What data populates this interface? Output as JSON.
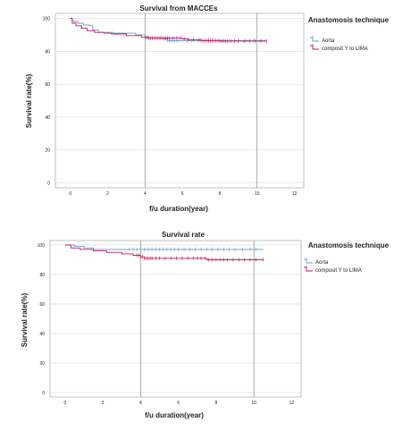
{
  "chart_data": [
    {
      "type": "line",
      "title": "Survival from MACCEs",
      "xlabel": "f/u duration(year)",
      "ylabel": "Survival rate(%)",
      "xlim": [
        -0.8,
        12.5
      ],
      "ylim": [
        -3,
        103
      ],
      "x_ticks": [
        "0",
        "2",
        "4",
        "6",
        "8",
        "10",
        "12"
      ],
      "x_tick_values": [
        0,
        2,
        4,
        6,
        8,
        10,
        12
      ],
      "y_ticks": [
        "0",
        "20",
        "40",
        "60",
        "80",
        "100"
      ],
      "y_tick_values": [
        0,
        20,
        40,
        60,
        80,
        100
      ],
      "vertical_reference_lines": [
        4,
        10
      ],
      "grid": true,
      "legend": {
        "title": "Anastomosis technique",
        "placement": "right"
      },
      "series": [
        {
          "name": "Aorta",
          "color": "#6a9ec4",
          "points": [
            [
              0,
              100
            ],
            [
              0.1,
              98.5
            ],
            [
              0.2,
              98
            ],
            [
              0.4,
              97
            ],
            [
              0.7,
              96
            ],
            [
              1.0,
              95.5
            ],
            [
              1.2,
              93
            ],
            [
              1.5,
              91.5
            ],
            [
              2.3,
              91
            ],
            [
              3.5,
              90
            ],
            [
              4.0,
              88
            ],
            [
              5.0,
              87.5
            ],
            [
              5.2,
              86.5
            ],
            [
              7.0,
              86.5
            ],
            [
              10.5,
              86.5
            ]
          ],
          "censor_marks": [
            4.0,
            4.1,
            4.2,
            4.3,
            4.4,
            4.5,
            4.6,
            4.7,
            4.8,
            4.9,
            5.0,
            5.1,
            5.2,
            5.3,
            5.4,
            5.5,
            5.6,
            5.7,
            5.8,
            6.0,
            6.2,
            6.5,
            6.8,
            7.0,
            7.2,
            7.4,
            7.6,
            7.8,
            8.0,
            8.2,
            8.5,
            8.8,
            9.0,
            9.4,
            9.8,
            10.2,
            10.5
          ]
        },
        {
          "name": "composit Y to LIMA",
          "color": "#c41a5c",
          "points": [
            [
              0,
              100
            ],
            [
              0.1,
              97
            ],
            [
              0.3,
              95.5
            ],
            [
              0.6,
              94
            ],
            [
              0.9,
              92.5
            ],
            [
              1.3,
              91.5
            ],
            [
              1.8,
              91
            ],
            [
              2.2,
              90.5
            ],
            [
              3.0,
              89.5
            ],
            [
              3.8,
              88.5
            ],
            [
              4.2,
              88
            ],
            [
              5.2,
              88
            ],
            [
              6.0,
              87.5
            ],
            [
              6.3,
              87
            ],
            [
              7.0,
              86.5
            ],
            [
              8.0,
              86.2
            ],
            [
              10.5,
              86
            ]
          ],
          "censor_marks": [
            4.0,
            4.1,
            4.2,
            4.3,
            4.4,
            4.5,
            4.6,
            4.7,
            4.8,
            4.9,
            5.0,
            5.1,
            5.2,
            5.3,
            5.5,
            5.7,
            5.9,
            6.1,
            6.3,
            6.6,
            6.9,
            7.0,
            7.1,
            7.2,
            7.3,
            7.4,
            7.5,
            7.6,
            7.7,
            7.8,
            7.9,
            8.0,
            8.1,
            8.2,
            8.3,
            8.4,
            8.6,
            8.8,
            9.0,
            9.3,
            9.6,
            9.9,
            10.2,
            10.5
          ]
        }
      ]
    },
    {
      "type": "line",
      "title": "Survival rate",
      "xlabel": "f/u duration(year)",
      "ylabel": "Survival rate(%)",
      "xlim": [
        -0.8,
        12.5
      ],
      "ylim": [
        -3,
        103
      ],
      "x_ticks": [
        "0",
        "2",
        "4",
        "6",
        "8",
        "10",
        "12"
      ],
      "x_tick_values": [
        0,
        2,
        4,
        6,
        8,
        10,
        12
      ],
      "y_ticks": [
        "0",
        "20",
        "40",
        "60",
        "80",
        "100"
      ],
      "y_tick_values": [
        0,
        20,
        40,
        60,
        80,
        100
      ],
      "vertical_reference_lines": [
        4,
        10
      ],
      "grid": true,
      "legend": {
        "title": "Anastomosis technique",
        "placement": "right"
      },
      "series": [
        {
          "name": "Aorta",
          "color": "#6a9ec4",
          "points": [
            [
              0,
              100
            ],
            [
              0.5,
              99
            ],
            [
              1.0,
              98
            ],
            [
              1.5,
              97
            ],
            [
              10.5,
              97
            ]
          ],
          "censor_marks": [
            3.4,
            3.6,
            3.8,
            4.0,
            4.2,
            4.4,
            4.6,
            4.8,
            5.0,
            5.2,
            5.4,
            5.6,
            5.8,
            6.0,
            6.3,
            6.6,
            6.9,
            7.2,
            7.5,
            7.8,
            8.1,
            8.4,
            8.7,
            9.0,
            9.4,
            9.8,
            10.1
          ]
        },
        {
          "name": "composit Y to LIMA",
          "color": "#c41a5c",
          "points": [
            [
              0,
              100
            ],
            [
              0.3,
              98
            ],
            [
              0.8,
              97
            ],
            [
              1.5,
              96
            ],
            [
              2.2,
              95
            ],
            [
              3.0,
              94
            ],
            [
              3.6,
              93
            ],
            [
              4.0,
              92
            ],
            [
              4.2,
              91
            ],
            [
              6.0,
              91
            ],
            [
              7.5,
              90
            ],
            [
              10.5,
              90
            ]
          ],
          "censor_marks": [
            3.8,
            3.9,
            4.0,
            4.1,
            4.2,
            4.3,
            4.4,
            4.5,
            4.6,
            4.8,
            5.0,
            5.3,
            5.6,
            5.9,
            6.2,
            6.5,
            6.8,
            7.0,
            7.2,
            7.4,
            7.6,
            7.8,
            8.0,
            8.2,
            8.4,
            8.6,
            8.9,
            9.2,
            9.5,
            9.8,
            10.1,
            10.5
          ]
        }
      ]
    }
  ]
}
